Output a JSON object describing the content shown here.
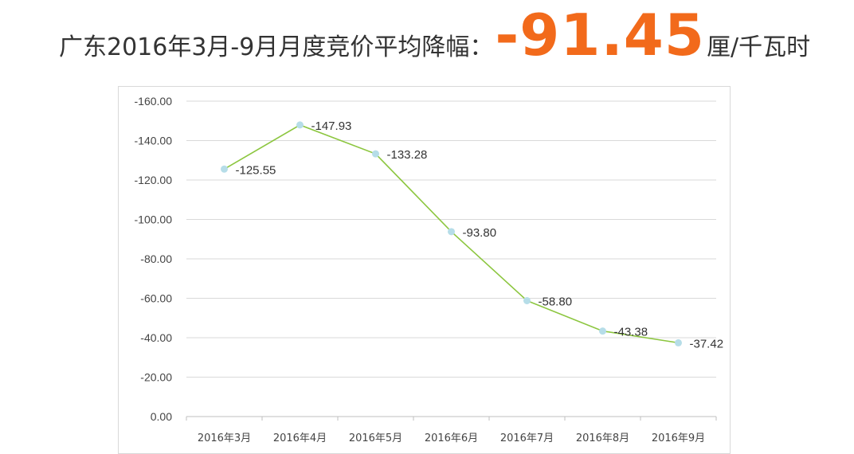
{
  "header": {
    "title_prefix": "广东2016年3月-9月月度竞价平均降幅：",
    "title_value": "-91.45",
    "title_unit": "厘/千瓦时",
    "value_color": "#f26a1b"
  },
  "chart_data": {
    "type": "line",
    "categories": [
      "2016年3月",
      "2016年4月",
      "2016年5月",
      "2016年6月",
      "2016年7月",
      "2016年8月",
      "2016年9月"
    ],
    "series": [
      {
        "values": [
          -125.55,
          -147.93,
          -133.28,
          -93.8,
          -58.8,
          -43.38,
          -37.42
        ],
        "labels": [
          "-125.55",
          "-147.93",
          "-133.28",
          "-93.80",
          "-58.80",
          "-43.38",
          "-37.42"
        ],
        "line_color": "#8cc63f",
        "marker_color": "#b6dde8"
      }
    ],
    "y_ticks": [
      "0.00",
      "-20.00",
      "-40.00",
      "-60.00",
      "-80.00",
      "-100.00",
      "-120.00",
      "-140.00",
      "-160.00"
    ],
    "ylim": [
      0,
      -160
    ],
    "y_axis_reversed": true,
    "grid": true,
    "legend": "none"
  }
}
